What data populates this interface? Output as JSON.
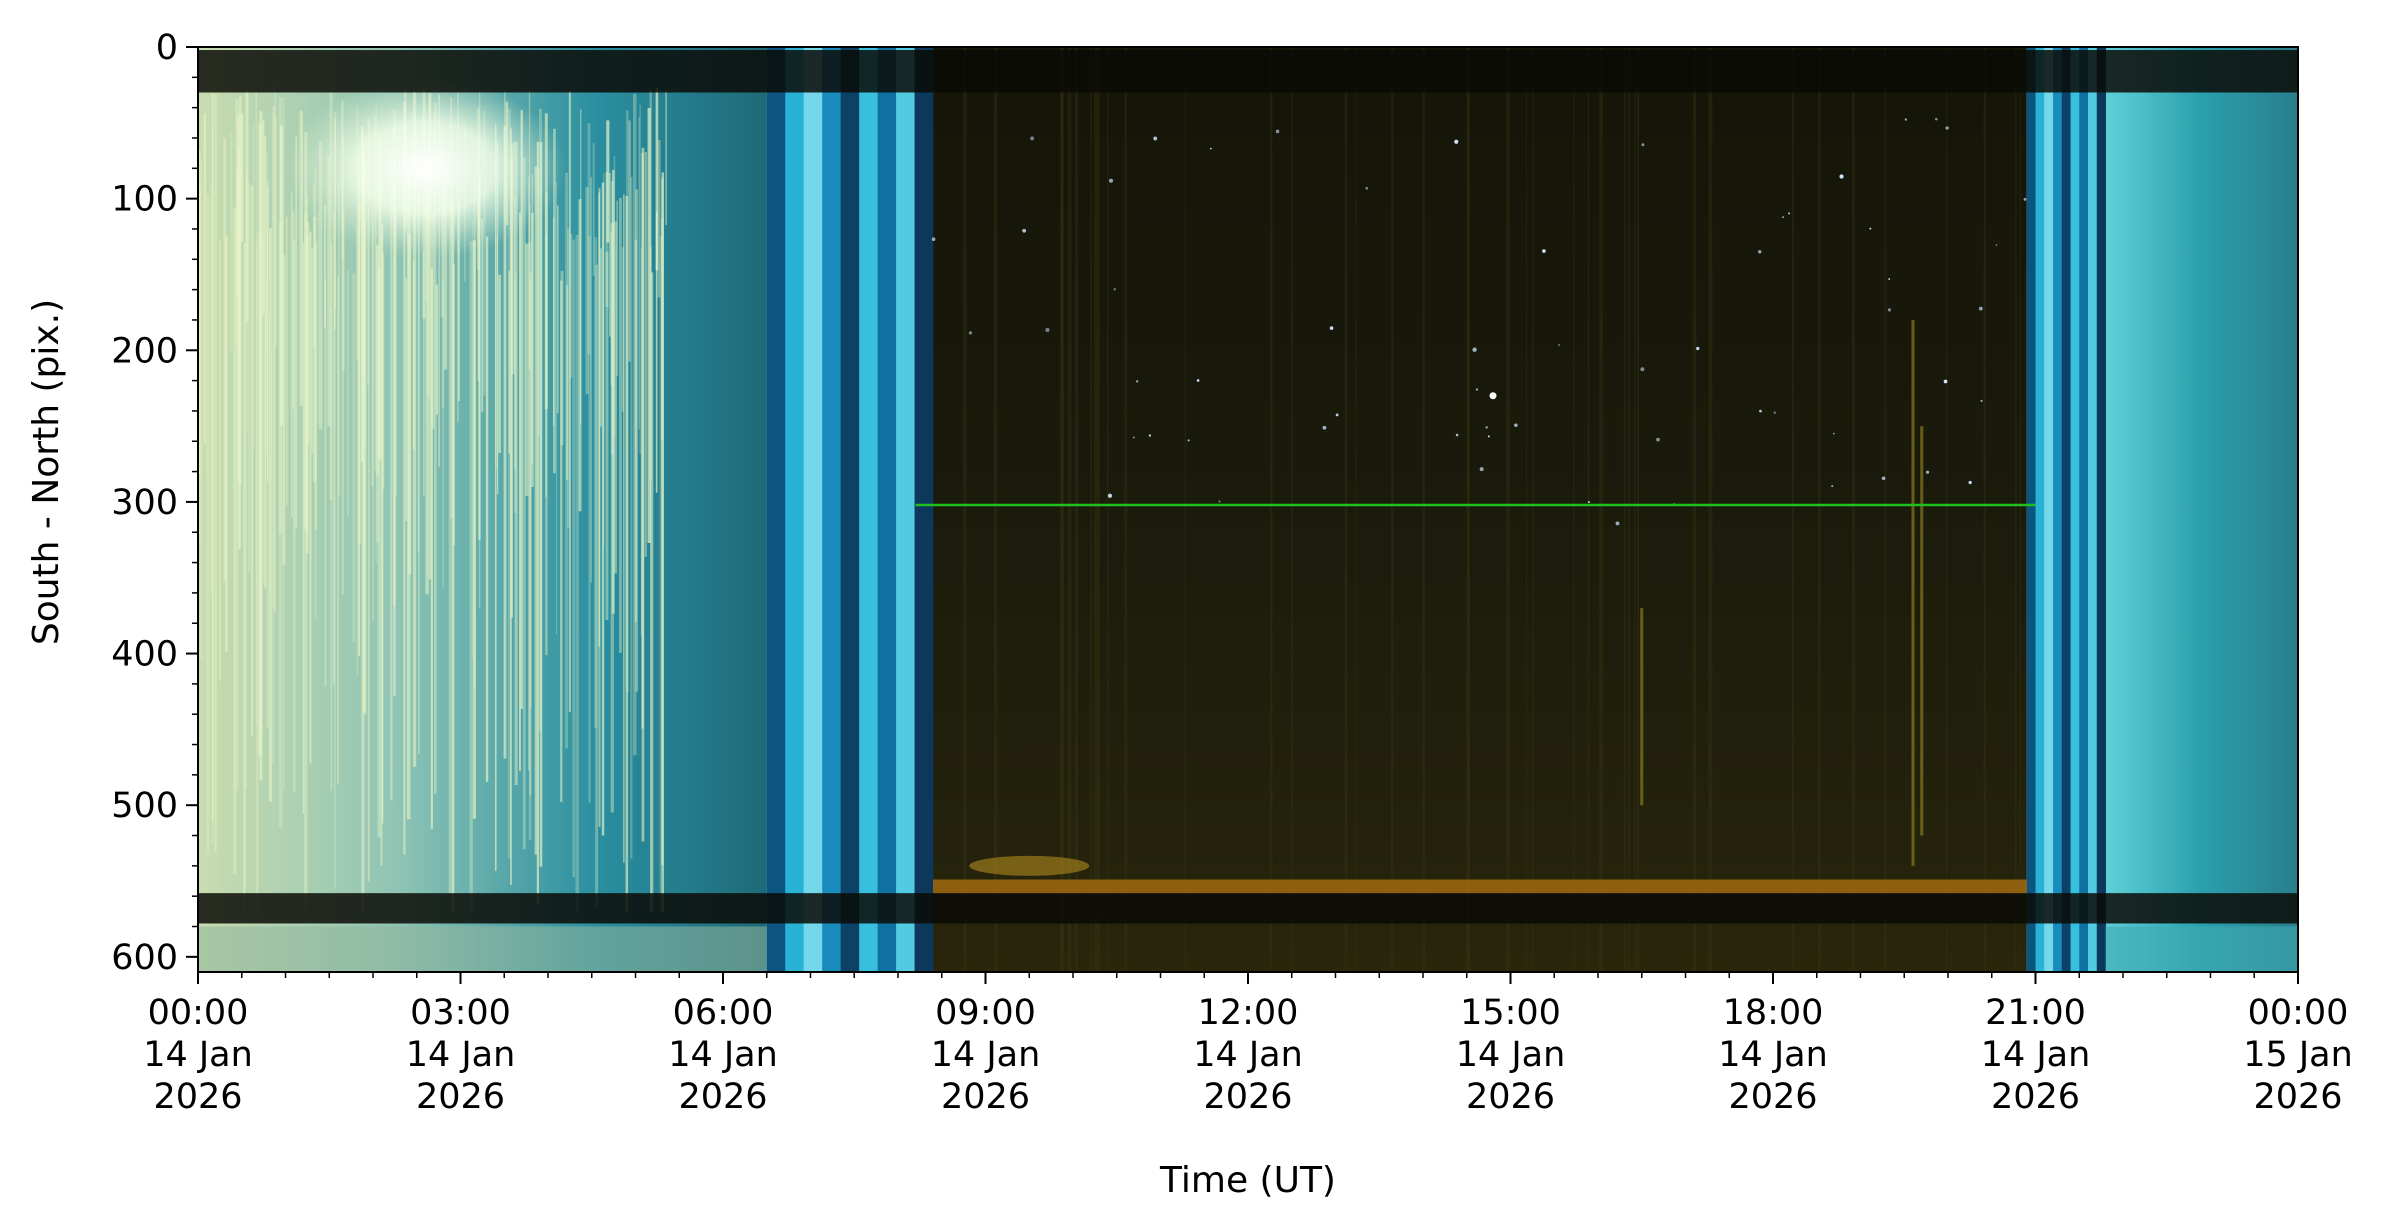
{
  "chart_data": {
    "type": "heatmap",
    "description_kind": "keogram",
    "xlabel": "Time (UT)",
    "ylabel": "South - North (pix.)",
    "x_range": [
      "2026-01-14 00:00",
      "2026-01-15 00:00"
    ],
    "y_range": [
      0,
      610
    ],
    "y_inverted": true,
    "x_ticks": [
      {
        "time": "00:00",
        "day": "14 Jan",
        "year": "2026",
        "hours": 0
      },
      {
        "time": "03:00",
        "day": "14 Jan",
        "year": "2026",
        "hours": 3
      },
      {
        "time": "06:00",
        "day": "14 Jan",
        "year": "2026",
        "hours": 6
      },
      {
        "time": "09:00",
        "day": "14 Jan",
        "year": "2026",
        "hours": 9
      },
      {
        "time": "12:00",
        "day": "14 Jan",
        "year": "2026",
        "hours": 12
      },
      {
        "time": "15:00",
        "day": "14 Jan",
        "year": "2026",
        "hours": 15
      },
      {
        "time": "18:00",
        "day": "14 Jan",
        "year": "2026",
        "hours": 18
      },
      {
        "time": "21:00",
        "day": "14 Jan",
        "year": "2026",
        "hours": 21
      },
      {
        "time": "00:00",
        "day": "15 Jan",
        "year": "2026",
        "hours": 24
      }
    ],
    "x_minor_tick_hours": 0.5,
    "y_ticks": [
      0,
      100,
      200,
      300,
      400,
      500,
      600
    ],
    "y_minor_tick_step": 20,
    "segments": [
      {
        "start_h": 0.0,
        "end_h": 6.5,
        "condition": "daylight",
        "color": "#2e8f9a"
      },
      {
        "start_h": 6.5,
        "end_h": 8.4,
        "condition": "twilight",
        "color": "#1b90c0"
      },
      {
        "start_h": 8.4,
        "end_h": 20.9,
        "condition": "night",
        "color": "#16160a"
      },
      {
        "start_h": 20.9,
        "end_h": 21.8,
        "condition": "twilight",
        "color": "#1b90c0"
      },
      {
        "start_h": 21.8,
        "end_h": 24.0,
        "condition": "daylight",
        "color": "#2a9ba4"
      }
    ],
    "horizontal_line": {
      "y": 302,
      "start_h": 8.2,
      "end_h": 21.0,
      "color": "#20c020"
    },
    "dark_bands_y": [
      [
        2,
        30
      ],
      [
        558,
        578
      ]
    ],
    "horizon_glow_y": 555,
    "x_ticks_step_hours": 3
  }
}
